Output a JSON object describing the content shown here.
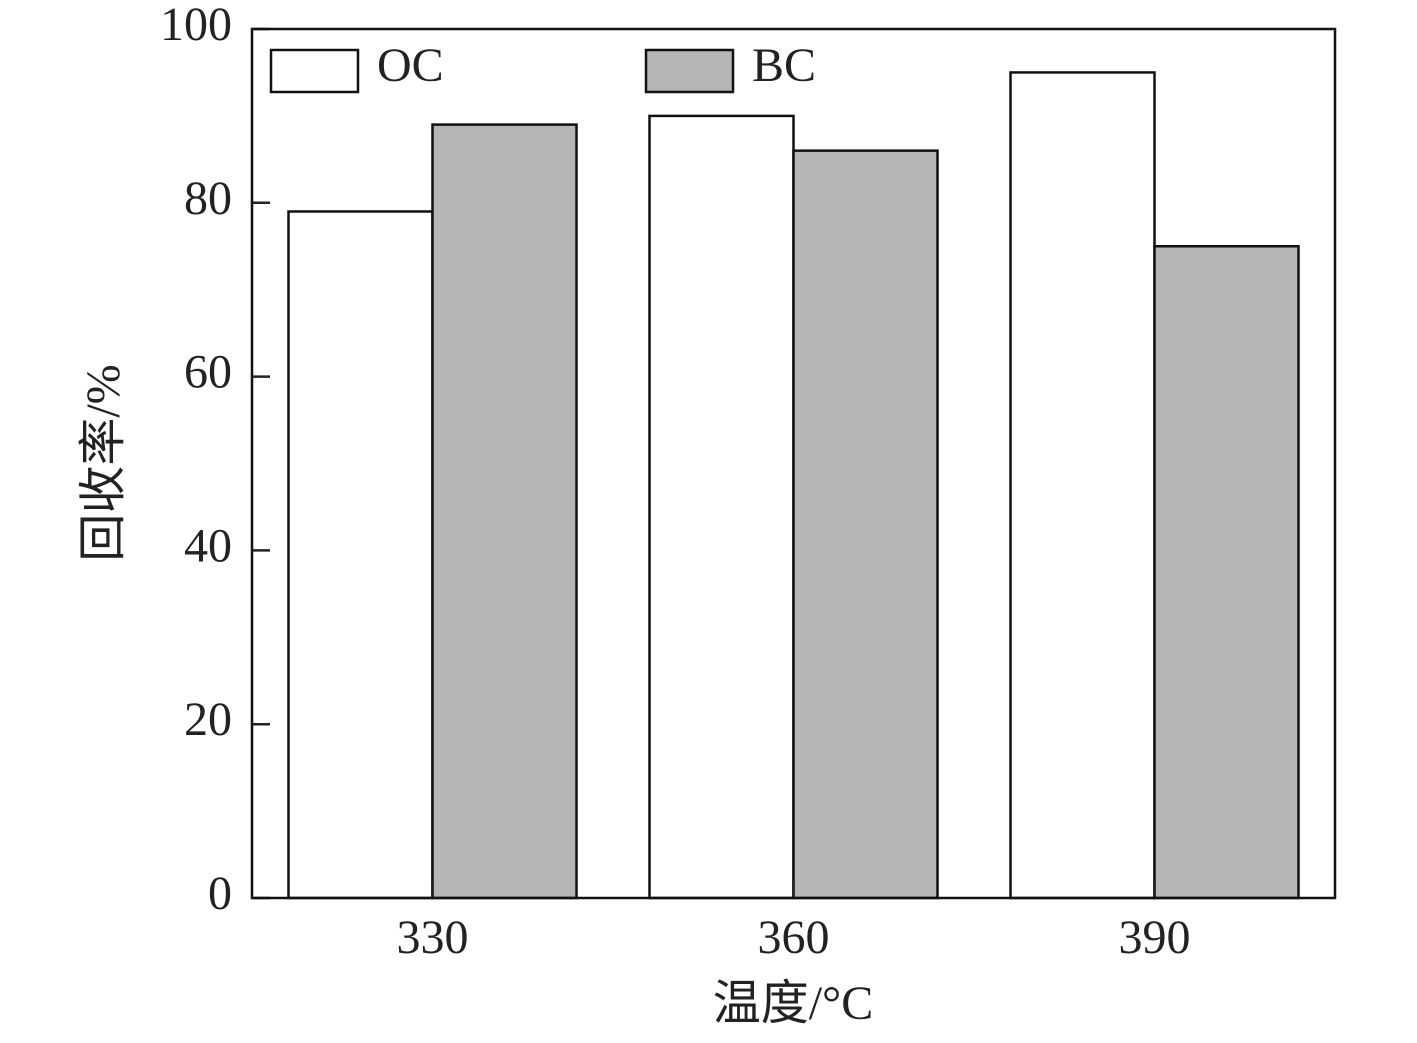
{
  "chart_data": {
    "type": "bar",
    "xlabel": "温度/°C",
    "ylabel": "回收率/%",
    "categories": [
      "330",
      "360",
      "390"
    ],
    "series": [
      {
        "name": "OC",
        "color": "#ffffff",
        "values": [
          79,
          90,
          95
        ]
      },
      {
        "name": "BC",
        "color": "#b5b5b5",
        "values": [
          89,
          86,
          75
        ]
      }
    ],
    "ylim": [
      0,
      100
    ],
    "yticks": [
      0,
      20,
      40,
      60,
      80,
      100
    ],
    "legend": "top-left"
  }
}
